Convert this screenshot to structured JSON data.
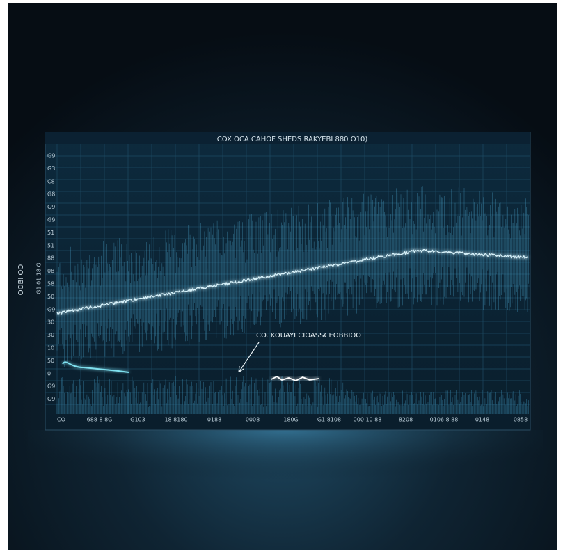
{
  "title": "COX OCA CAHOF SHEDS RAKYEBI 880 O10)",
  "y_axis_label": "OOBI OO",
  "inner_axis_label": "G1 01 18 G",
  "y_tick_labels": [
    "G9",
    "G3",
    "C8",
    "G8",
    "G9",
    "G9",
    "51",
    "51",
    "88",
    "08",
    "58",
    "50",
    "G9",
    "30",
    "30",
    "10",
    "50",
    "0",
    "G9",
    "G9"
  ],
  "x_tick_labels": [
    "CO",
    "688 8 8G",
    "G103",
    "18 8180",
    "0188",
    "0008",
    "180G",
    "G1 8108",
    "000 10 88",
    "8208",
    "0106 8 88",
    "0148",
    "0858"
  ],
  "annotation": "CO. KOUAYI CIOASSCEOBBIOO"
}
